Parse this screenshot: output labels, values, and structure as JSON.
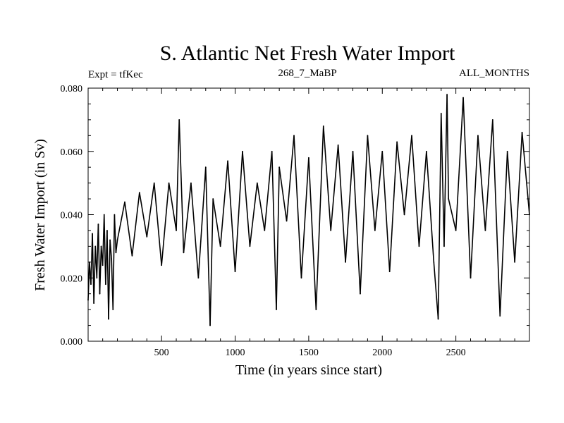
{
  "chart_data": {
    "type": "line",
    "title": "S. Atlantic Net Fresh Water Import",
    "subtitle_left": "Expt = tfKec",
    "subtitle_center": "268_7_MaBP",
    "subtitle_right": "ALL_MONTHS",
    "xlabel": "Time (in years since start)",
    "ylabel": "Fresh Water Import (in Sv)",
    "xlim": [
      1,
      3000
    ],
    "ylim": [
      0.0,
      0.08
    ],
    "xticks": [
      500,
      1000,
      1500,
      2000,
      2500
    ],
    "xtick_labels": [
      "500",
      "1000",
      "1500",
      "2000",
      "2500"
    ],
    "yticks": [
      0.0,
      0.02,
      0.04,
      0.06,
      0.08
    ],
    "ytick_labels": [
      "0.000",
      "0.020",
      "0.040",
      "0.060",
      "0.080"
    ],
    "grid": false,
    "series": [
      {
        "color": "#000000",
        "x": [
          1,
          10,
          20,
          30,
          40,
          50,
          60,
          70,
          80,
          90,
          100,
          110,
          120,
          130,
          140,
          150,
          160,
          170,
          180,
          190,
          200,
          250,
          300,
          350,
          400,
          450,
          500,
          550,
          600,
          620,
          650,
          700,
          750,
          800,
          830,
          850,
          900,
          950,
          1000,
          1050,
          1100,
          1150,
          1200,
          1250,
          1280,
          1300,
          1350,
          1400,
          1450,
          1500,
          1550,
          1600,
          1650,
          1700,
          1750,
          1800,
          1850,
          1900,
          1950,
          2000,
          2050,
          2100,
          2150,
          2200,
          2250,
          2300,
          2350,
          2380,
          2400,
          2420,
          2440,
          2450,
          2500,
          2550,
          2600,
          2650,
          2700,
          2750,
          2800,
          2850,
          2900,
          2950,
          3000
        ],
        "y": [
          0.013,
          0.025,
          0.018,
          0.034,
          0.012,
          0.03,
          0.02,
          0.037,
          0.015,
          0.03,
          0.024,
          0.04,
          0.018,
          0.035,
          0.007,
          0.032,
          0.026,
          0.01,
          0.04,
          0.028,
          0.032,
          0.044,
          0.027,
          0.047,
          0.033,
          0.05,
          0.024,
          0.05,
          0.035,
          0.07,
          0.028,
          0.05,
          0.02,
          0.055,
          0.005,
          0.045,
          0.03,
          0.057,
          0.022,
          0.06,
          0.03,
          0.05,
          0.035,
          0.06,
          0.01,
          0.055,
          0.038,
          0.065,
          0.02,
          0.058,
          0.01,
          0.068,
          0.035,
          0.062,
          0.025,
          0.06,
          0.015,
          0.065,
          0.035,
          0.06,
          0.022,
          0.063,
          0.04,
          0.065,
          0.03,
          0.06,
          0.025,
          0.007,
          0.072,
          0.03,
          0.078,
          0.045,
          0.035,
          0.077,
          0.02,
          0.065,
          0.035,
          0.07,
          0.008,
          0.06,
          0.025,
          0.066,
          0.04
        ]
      }
    ]
  }
}
